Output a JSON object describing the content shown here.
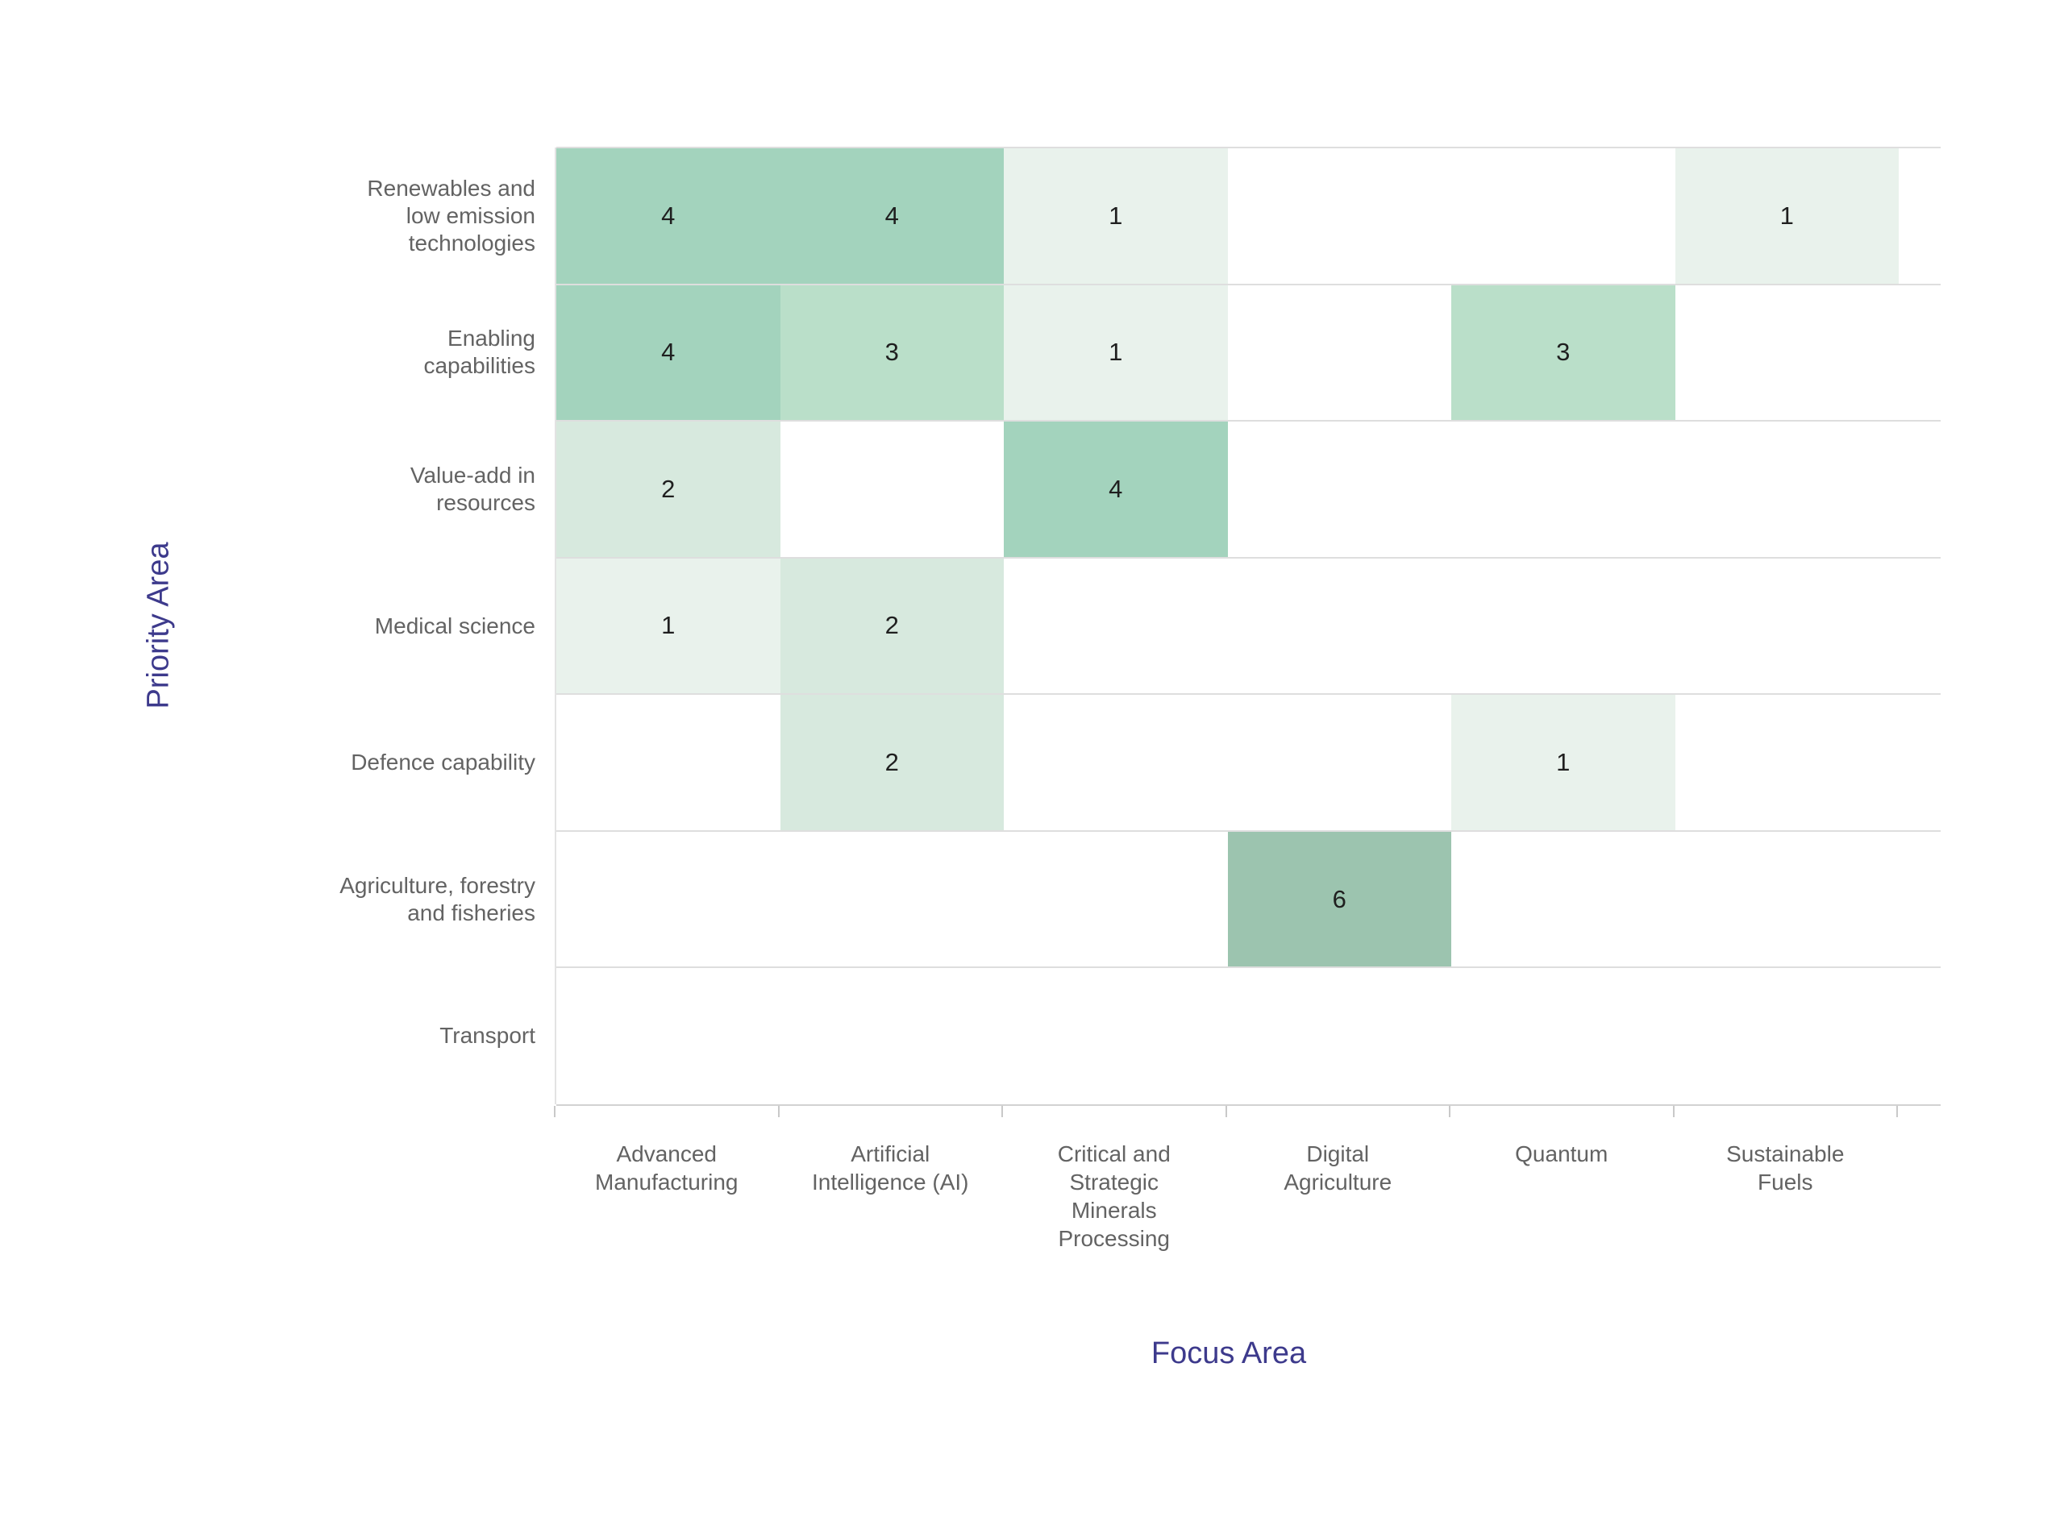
{
  "chart_data": {
    "type": "heatmap",
    "title": "",
    "xlabel": "Focus Area",
    "ylabel": "Priority Area",
    "x_categories": [
      "Advanced Manufacturing",
      "Artificial Intelligence (AI)",
      "Critical and Strategic Minerals Processing",
      "Digital Agriculture",
      "Quantum",
      "Sustainable Fuels"
    ],
    "x_category_lines": [
      [
        "Advanced",
        "Manufacturing"
      ],
      [
        "Artificial",
        "Intelligence (AI)"
      ],
      [
        "Critical and",
        "Strategic",
        "Minerals",
        "Processing"
      ],
      [
        "Digital",
        "Agriculture"
      ],
      [
        "Quantum"
      ],
      [
        "Sustainable",
        "Fuels"
      ]
    ],
    "y_categories": [
      "Renewables and low emission technologies",
      "Enabling capabilities",
      "Value-add in resources",
      "Medical science",
      "Defence capability",
      "Agriculture, forestry and fisheries",
      "Transport"
    ],
    "y_category_lines": [
      [
        "Renewables and",
        "low emission",
        "technologies"
      ],
      [
        "Enabling",
        "capabilities"
      ],
      [
        "Value-add in",
        "resources"
      ],
      [
        "Medical science"
      ],
      [
        "Defence capability"
      ],
      [
        "Agriculture, forestry",
        "and fisheries"
      ],
      [
        "Transport"
      ]
    ],
    "cells": [
      [
        4,
        4,
        1,
        null,
        null,
        1
      ],
      [
        4,
        3,
        1,
        null,
        3,
        null
      ],
      [
        2,
        null,
        4,
        null,
        null,
        null
      ],
      [
        1,
        2,
        null,
        null,
        null,
        null
      ],
      [
        null,
        2,
        null,
        null,
        1,
        null
      ],
      [
        null,
        null,
        null,
        6,
        null,
        null
      ],
      [
        null,
        null,
        null,
        null,
        null,
        null
      ]
    ],
    "value_min": 1,
    "value_max": 6,
    "color_scale": {
      "1": "#e9f2ec",
      "2": "#d7e9de",
      "3": "#badfc9",
      "4": "#a3d3bd",
      "6": "#9cc4af"
    },
    "legend_position": "none",
    "grid": "horizontal row separators, bottom axis with ticks at column boundaries",
    "axis_ranges": {
      "columns": 6,
      "rows": 7
    }
  },
  "colors": {
    "axis_title": "#3d3a8c",
    "category_label": "#636363",
    "cell_value_text": "#1f1f1f",
    "gridline": "#dedede",
    "axis_line": "#d2d2d2",
    "background": "#ffffff"
  },
  "axes": {
    "x_title": "Focus Area",
    "y_title": "Priority Area"
  }
}
